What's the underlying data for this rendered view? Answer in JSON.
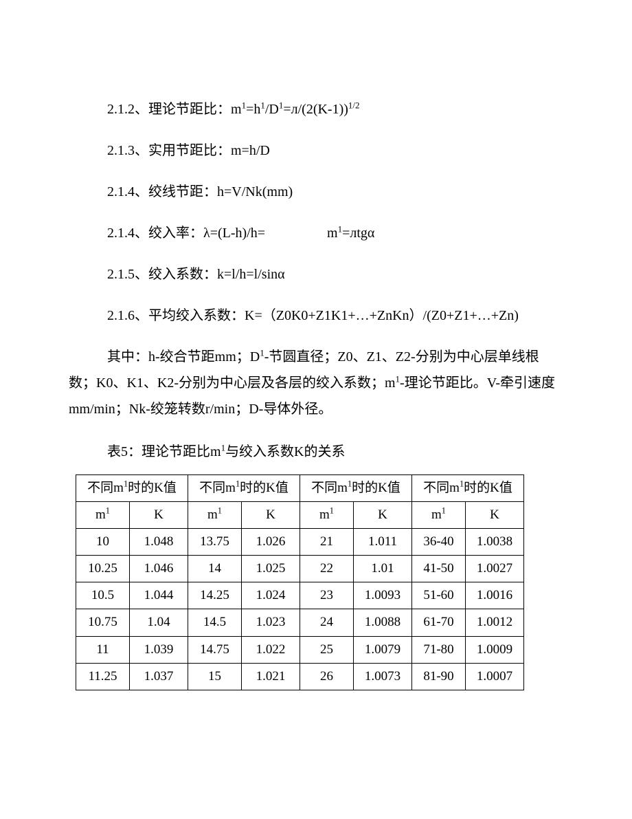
{
  "formulas": {
    "f1_pre": "2.1.2、理论节距比：m",
    "f1_mid1": "=h",
    "f1_mid2": "/D",
    "f1_mid3": "=л/(2(K-1))",
    "f2": "2.1.3、实用节距比：m=h/D",
    "f3": "2.1.4、绞线节距：h=V/Nk(mm)",
    "f4_pre": "2.1.4、绞入率：λ=(L-h)/h=",
    "f4_mid": "m",
    "f4_post": "=лtgα",
    "f5": "2.1.5、绞入系数：k=l/h=l/sinα",
    "f6": "2.1.6、平均绞入系数：K=（Z0K0+Z1K1+…+ZnKn）/(Z0+Z1+…+Zn)",
    "notes_pre": "其中：h-绞合节距mm；D",
    "notes_mid1": "-节圆直径；Z0、Z1、Z2-分别为中心层单线根数；K0、K1、K2-分别为中心层及各层的绞入系数；m",
    "notes_mid2": "-理论节距比。V-牵引速度mm/min；Nk-绞笼转数r/min；D-导体外径。",
    "table_title_pre": "表5：理论节距比m",
    "table_title_post": "与绞入系数K的关系"
  },
  "table": {
    "header_group_pre": "不同m",
    "header_group_post": "时的K值",
    "sub_m_pre": "m",
    "sub_k": "K",
    "col_widths": {
      "m": 78,
      "k": 85
    },
    "rows": [
      [
        "10",
        "1.048",
        "13.75",
        "1.026",
        "21",
        "1.011",
        "36-40",
        "1.0038"
      ],
      [
        "10.25",
        "1.046",
        "14",
        "1.025",
        "22",
        "1.01",
        "41-50",
        "1.0027"
      ],
      [
        "10.5",
        "1.044",
        "14.25",
        "1.024",
        "23",
        "1.0093",
        "51-60",
        "1.0016"
      ],
      [
        "10.75",
        "1.04",
        "14.5",
        "1.023",
        "24",
        "1.0088",
        "61-70",
        "1.0012"
      ],
      [
        "11",
        "1.039",
        "14.75",
        "1.022",
        "25",
        "1.0079",
        "71-80",
        "1.0009"
      ],
      [
        "11.25",
        "1.037",
        "15",
        "1.021",
        "26",
        "1.0073",
        "81-90",
        "1.0007"
      ]
    ]
  }
}
